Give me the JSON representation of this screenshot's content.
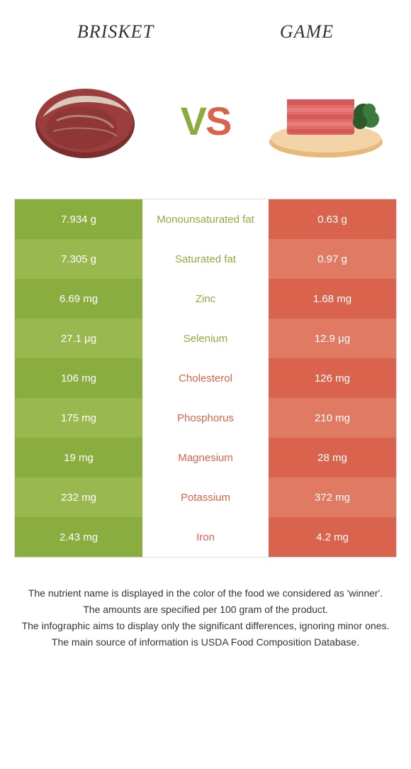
{
  "header": {
    "left_title": "BRISKET",
    "right_title": "GAME"
  },
  "vs": {
    "v": "V",
    "s": "S"
  },
  "colors": {
    "left_base": "#8aad3f",
    "left_alt": "#99b84f",
    "right_base": "#d9634c",
    "right_alt": "#e07a63",
    "mid_text_left": "#d9634c",
    "mid_text_right": "#8aad3f"
  },
  "rows": [
    {
      "left": "7.934 g",
      "mid": "Monounsaturated fat",
      "right": "0.63 g",
      "winner": "left"
    },
    {
      "left": "7.305 g",
      "mid": "Saturated fat",
      "right": "0.97 g",
      "winner": "left"
    },
    {
      "left": "6.69 mg",
      "mid": "Zinc",
      "right": "1.68 mg",
      "winner": "left"
    },
    {
      "left": "27.1 µg",
      "mid": "Selenium",
      "right": "12.9 µg",
      "winner": "left"
    },
    {
      "left": "106 mg",
      "mid": "Cholesterol",
      "right": "126 mg",
      "winner": "right"
    },
    {
      "left": "175 mg",
      "mid": "Phosphorus",
      "right": "210 mg",
      "winner": "right"
    },
    {
      "left": "19 mg",
      "mid": "Magnesium",
      "right": "28 mg",
      "winner": "right"
    },
    {
      "left": "232 mg",
      "mid": "Potassium",
      "right": "372 mg",
      "winner": "right"
    },
    {
      "left": "2.43 mg",
      "mid": "Iron",
      "right": "4.2 mg",
      "winner": "right"
    }
  ],
  "footnotes": [
    "The nutrient name is displayed in the color of the food we considered as 'winner'.",
    "The amounts are specified per 100 gram of the product.",
    "The infographic aims to display only the significant differences, ignoring minor ones.",
    "The main source of information is USDA Food Composition Database."
  ]
}
